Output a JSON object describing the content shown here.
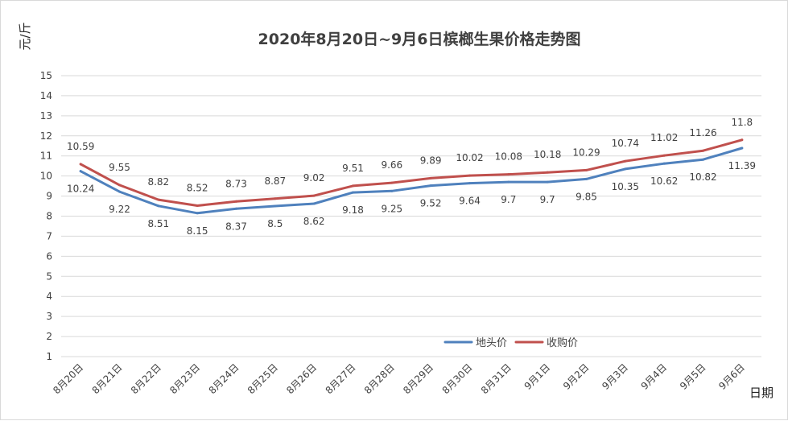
{
  "chart_data": {
    "type": "line",
    "title": "2020年8月20日~9月6日槟榔生果价格走势图",
    "ylabel": "元/斤",
    "xlabel": "日期",
    "ylim": [
      1,
      15
    ],
    "yticks": [
      1,
      2,
      3,
      4,
      5,
      6,
      7,
      8,
      9,
      10,
      11,
      12,
      13,
      14,
      15
    ],
    "grid": true,
    "legend_position": "bottom-right",
    "categories": [
      "8月20日",
      "8月21日",
      "8月22日",
      "8月23日",
      "8月24日",
      "8月25日",
      "8月26日",
      "8月27日",
      "8月28日",
      "8月29日",
      "8月30日",
      "8月31日",
      "9月1日",
      "9月2日",
      "9月3日",
      "9月4日",
      "9月5日",
      "9月6日"
    ],
    "series": [
      {
        "name": "地头价",
        "color": "#4f81bd",
        "label_position": "below",
        "values": [
          10.24,
          9.22,
          8.51,
          8.15,
          8.37,
          8.5,
          8.62,
          9.18,
          9.25,
          9.52,
          9.64,
          9.7,
          9.7,
          9.85,
          10.35,
          10.62,
          10.82,
          11.39
        ],
        "labels": [
          "10.24",
          "9.22",
          "8.51",
          "8.15",
          "8.37",
          "8.5",
          "8.62",
          "9.18",
          "9.25",
          "9.52",
          "9.64",
          "9.7",
          "9.7",
          "9.85",
          "10.35",
          "10.62",
          "10.82",
          "11.39"
        ]
      },
      {
        "name": "收购价",
        "color": "#c0504d",
        "label_position": "above",
        "values": [
          10.59,
          9.55,
          8.82,
          8.52,
          8.73,
          8.87,
          9.02,
          9.51,
          9.66,
          9.89,
          10.02,
          10.08,
          10.18,
          10.29,
          10.74,
          11.02,
          11.26,
          11.8
        ],
        "labels": [
          "10.59",
          "9.55",
          "8.82",
          "8.52",
          "8.73",
          "8.87",
          "9.02",
          "9.51",
          "9.66",
          "9.89",
          "10.02",
          "10.08",
          "10.18",
          "10.29",
          "10.74",
          "11.02",
          "11.26",
          "11.8"
        ]
      }
    ]
  }
}
